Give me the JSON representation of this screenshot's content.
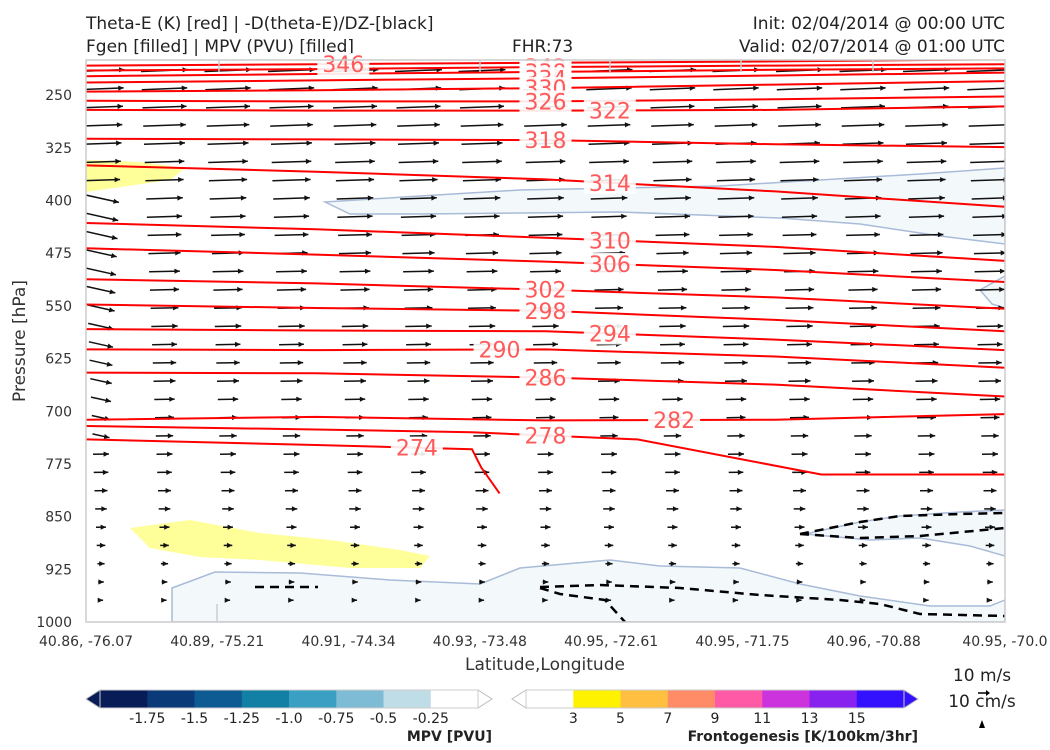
{
  "header": {
    "title_line1": "Theta-E (K) [red] | -D(theta-E)/DZ-[black]",
    "title_line2": "Fgen [filled] | MPV (PVU) [filled]",
    "fhr": "FHR:73",
    "init": "Init: 02/04/2014 @ 00:00 UTC",
    "valid": "Valid: 02/07/2014 @ 01:00 UTC"
  },
  "chart_data": {
    "type": "cross-section",
    "xlabel": "Latitude,Longitude",
    "ylabel": "Pressure [hPa]",
    "x_ticks": [
      "40.86, -76.07",
      "40.89, -75.21",
      "40.91, -74.34",
      "40.93, -73.48",
      "40.95, -72.61",
      "40.95, -71.75",
      "40.96, -70.88",
      "40.95, -70.0"
    ],
    "y_ticks": [
      250,
      325,
      400,
      475,
      550,
      625,
      700,
      775,
      850,
      925,
      1000
    ],
    "ylim": [
      1000,
      200
    ],
    "theta_e_color": "#ff0000",
    "theta_e_label_color": "#ff5a5a",
    "theta_e_contours": [
      {
        "value": 346,
        "label": "346",
        "p": [
          [
            0,
            208
          ],
          [
            0.25,
            206
          ],
          [
            0.5,
            204
          ],
          [
            0.75,
            202
          ],
          [
            1,
            199
          ]
        ],
        "lx": 0.28
      },
      {
        "value": 342,
        "label": "342",
        "p": [
          [
            0,
            215
          ],
          [
            0.25,
            213
          ],
          [
            0.5,
            210
          ],
          [
            0.75,
            208
          ],
          [
            1,
            206
          ]
        ],
        "lx": 0.5
      },
      {
        "value": 338,
        "label": "338",
        "p": [
          [
            0,
            223
          ],
          [
            0.25,
            220
          ],
          [
            0.5,
            217
          ],
          [
            0.75,
            214
          ],
          [
            1,
            212
          ]
        ],
        "lx": 0.5
      },
      {
        "value": 334,
        "label": "334",
        "p": [
          [
            0,
            232
          ],
          [
            0.25,
            229
          ],
          [
            0.5,
            226
          ],
          [
            0.75,
            222
          ],
          [
            1,
            218
          ]
        ],
        "lx": 0.5
      },
      {
        "value": 330,
        "label": "330",
        "p": [
          [
            0,
            245
          ],
          [
            0.25,
            243
          ],
          [
            0.5,
            240
          ],
          [
            0.75,
            235
          ],
          [
            1,
            230
          ]
        ],
        "lx": 0.5
      },
      {
        "value": 326,
        "label": "326",
        "p": [
          [
            0,
            258
          ],
          [
            0.25,
            259
          ],
          [
            0.5,
            259
          ],
          [
            0.75,
            256
          ],
          [
            1,
            252
          ]
        ],
        "lx": 0.5
      },
      {
        "value": 322,
        "label": "322",
        "p": [
          [
            0,
            271
          ],
          [
            0.25,
            272
          ],
          [
            0.5,
            272
          ],
          [
            0.75,
            271
          ],
          [
            1,
            266
          ]
        ],
        "lx": 0.57
      },
      {
        "value": 318,
        "label": "318",
        "p": [
          [
            0,
            312
          ],
          [
            0.25,
            313
          ],
          [
            0.5,
            314
          ],
          [
            0.75,
            320
          ],
          [
            1,
            324
          ]
        ],
        "lx": 0.5
      },
      {
        "value": 314,
        "label": "314",
        "p": [
          [
            0,
            350
          ],
          [
            0.25,
            359
          ],
          [
            0.5,
            370
          ],
          [
            0.75,
            387
          ],
          [
            1,
            409
          ]
        ],
        "lx": 0.57
      },
      {
        "value": 310,
        "label": "310",
        "p": [
          [
            0,
            432
          ],
          [
            0.25,
            441
          ],
          [
            0.5,
            453
          ],
          [
            0.75,
            466
          ],
          [
            1,
            486
          ]
        ],
        "lx": 0.57
      },
      {
        "value": 306,
        "label": "306",
        "p": [
          [
            0,
            468
          ],
          [
            0.25,
            477
          ],
          [
            0.5,
            487
          ],
          [
            0.75,
            499
          ],
          [
            1,
            516
          ]
        ],
        "lx": 0.57
      },
      {
        "value": 302,
        "label": "302",
        "p": [
          [
            0,
            512
          ],
          [
            0.25,
            518
          ],
          [
            0.5,
            527
          ],
          [
            0.75,
            538
          ],
          [
            1,
            554
          ]
        ],
        "lx": 0.5
      },
      {
        "value": 298,
        "label": "298",
        "p": [
          [
            0,
            548
          ],
          [
            0.25,
            553
          ],
          [
            0.5,
            557
          ],
          [
            0.75,
            570
          ],
          [
            1,
            586
          ]
        ],
        "lx": 0.5
      },
      {
        "value": 294,
        "label": "294",
        "p": [
          [
            0,
            583
          ],
          [
            0.25,
            585
          ],
          [
            0.5,
            586
          ],
          [
            0.75,
            598
          ],
          [
            1,
            613
          ]
        ],
        "lx": 0.57
      },
      {
        "value": 290,
        "label": "290",
        "p": [
          [
            0,
            612
          ],
          [
            0.25,
            613
          ],
          [
            0.5,
            612
          ],
          [
            0.75,
            622
          ],
          [
            1,
            638
          ]
        ],
        "lx": 0.45
      },
      {
        "value": 286,
        "label": "286",
        "p": [
          [
            0,
            645
          ],
          [
            0.25,
            646
          ],
          [
            0.5,
            652
          ],
          [
            0.75,
            662
          ],
          [
            1,
            679
          ]
        ],
        "lx": 0.5
      },
      {
        "value": 282,
        "label": "282",
        "p": [
          [
            0,
            712
          ],
          [
            0.25,
            708
          ],
          [
            0.5,
            713
          ],
          [
            0.75,
            712
          ],
          [
            1,
            704
          ]
        ],
        "lx": 0.64
      },
      {
        "value": 278,
        "label": "278",
        "p": [
          [
            0,
            721
          ],
          [
            0.25,
            726
          ],
          [
            0.42,
            730
          ],
          [
            0.6,
            740
          ],
          [
            0.8,
            790
          ],
          [
            1,
            790
          ]
        ],
        "lx": 0.5
      },
      {
        "value": 274,
        "label": "274",
        "p": [
          [
            0,
            740
          ],
          [
            0.25,
            748
          ],
          [
            0.42,
            754
          ],
          [
            0.43,
            780
          ],
          [
            0.45,
            817
          ]
        ],
        "lx": 0.36
      }
    ],
    "mpv_colorbar": {
      "title": "MPV [PVU]",
      "labels": [
        "-1.75",
        "-1.5",
        "-1.25",
        "-1.0",
        "-0.75",
        "-0.5",
        "-0.25"
      ],
      "colors": [
        "#081d58",
        "#0b3a78",
        "#0e5a93",
        "#127fa5",
        "#3a9fc2",
        "#7ebcd5",
        "#bfdde6",
        "#ffffff"
      ]
    },
    "fgen_colorbar": {
      "title": "Frontogenesis [K/100km/3hr]",
      "labels": [
        "3",
        "5",
        "7",
        "9",
        "11",
        "13",
        "15"
      ],
      "colors": [
        "#ffffff",
        "#fff200",
        "#ffbf40",
        "#ff8c66",
        "#ff5aa5",
        "#cc33dd",
        "#8822ee",
        "#3311ff"
      ]
    },
    "wind_reference": [
      "10 m/s",
      "10 cm/s"
    ]
  }
}
